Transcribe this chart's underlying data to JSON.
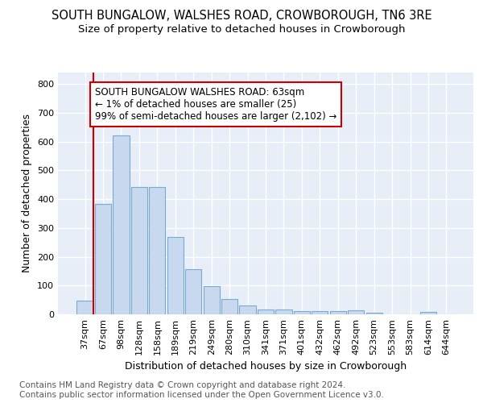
{
  "title": "SOUTH BUNGALOW, WALSHES ROAD, CROWBOROUGH, TN6 3RE",
  "subtitle": "Size of property relative to detached houses in Crowborough",
  "xlabel": "Distribution of detached houses by size in Crowborough",
  "ylabel": "Number of detached properties",
  "bar_color": "#c8d8ee",
  "bar_edge_color": "#7aaad0",
  "background_color": "#e8eef8",
  "grid_color": "#ffffff",
  "categories": [
    "37sqm",
    "67sqm",
    "98sqm",
    "128sqm",
    "158sqm",
    "189sqm",
    "219sqm",
    "249sqm",
    "280sqm",
    "310sqm",
    "341sqm",
    "371sqm",
    "401sqm",
    "432sqm",
    "462sqm",
    "492sqm",
    "523sqm",
    "553sqm",
    "583sqm",
    "614sqm",
    "644sqm"
  ],
  "values": [
    47,
    385,
    622,
    443,
    443,
    268,
    157,
    98,
    52,
    30,
    17,
    17,
    11,
    11,
    11,
    15,
    7,
    0,
    0,
    8,
    0
  ],
  "ylim": [
    0,
    840
  ],
  "yticks": [
    0,
    100,
    200,
    300,
    400,
    500,
    600,
    700,
    800
  ],
  "marker_color": "#cc0000",
  "annotation_text": "SOUTH BUNGALOW WALSHES ROAD: 63sqm\n← 1% of detached houses are smaller (25)\n99% of semi-detached houses are larger (2,102) →",
  "annotation_box_color": "#ffffff",
  "annotation_edge_color": "#cc0000",
  "footer_text": "Contains HM Land Registry data © Crown copyright and database right 2024.\nContains public sector information licensed under the Open Government Licence v3.0.",
  "title_fontsize": 10.5,
  "subtitle_fontsize": 9.5,
  "axis_label_fontsize": 9,
  "tick_fontsize": 8,
  "annotation_fontsize": 8.5,
  "footer_fontsize": 7.5
}
